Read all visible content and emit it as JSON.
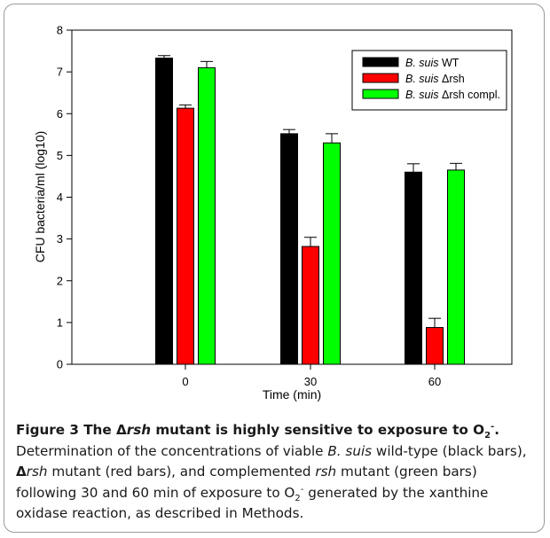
{
  "chart_data": {
    "type": "bar",
    "categories": [
      "0",
      "30",
      "60"
    ],
    "xlabel": "Time (min)",
    "ylabel": "CFU bacteria/ml (log10)",
    "ylim": [
      0,
      8
    ],
    "yticks": [
      0,
      1,
      2,
      3,
      4,
      5,
      6,
      7,
      8
    ],
    "grid": false,
    "legend_position": "top-right",
    "series": [
      {
        "name": "B. suis WT",
        "name_italic": "B. suis",
        "name_rest": " WT",
        "color": "#000000",
        "values": [
          7.33,
          5.52,
          4.6
        ],
        "errors": [
          0.06,
          0.1,
          0.2
        ]
      },
      {
        "name": "B. suis Δrsh",
        "name_italic": "B. suis",
        "name_rest": " Δrsh",
        "color": "#ff0000",
        "values": [
          6.13,
          2.82,
          0.88
        ],
        "errors": [
          0.08,
          0.22,
          0.22
        ]
      },
      {
        "name": "B. suis Δrsh compl.",
        "name_italic": "B. suis",
        "name_rest": " Δrsh compl.",
        "color": "#00ff00",
        "values": [
          7.1,
          5.3,
          4.65
        ],
        "errors": [
          0.15,
          0.22,
          0.16
        ]
      }
    ]
  },
  "caption": {
    "title_prefix": "Figure 3 The Δ",
    "title_italic": "rsh",
    "title_suffix": " mutant is highly sensitive to exposure to",
    "title_o2": "O",
    "title_sub": "2",
    "title_sup": "-",
    "title_end": ".",
    "t1": " Determination of the concentrations of viable ",
    "t2": "B. suis",
    "t3": " wild-type (black bars), ",
    "t4": "Δ",
    "t5": "rsh",
    "t6": " mutant (red bars), and complemented ",
    "t7": "rsh",
    "t8": " mutant (green bars) following 30 and 60 min of exposure to O",
    "t9": "2",
    "t10": "-",
    "t11": " generated by the xanthine oxidase reaction, as described in Methods."
  }
}
